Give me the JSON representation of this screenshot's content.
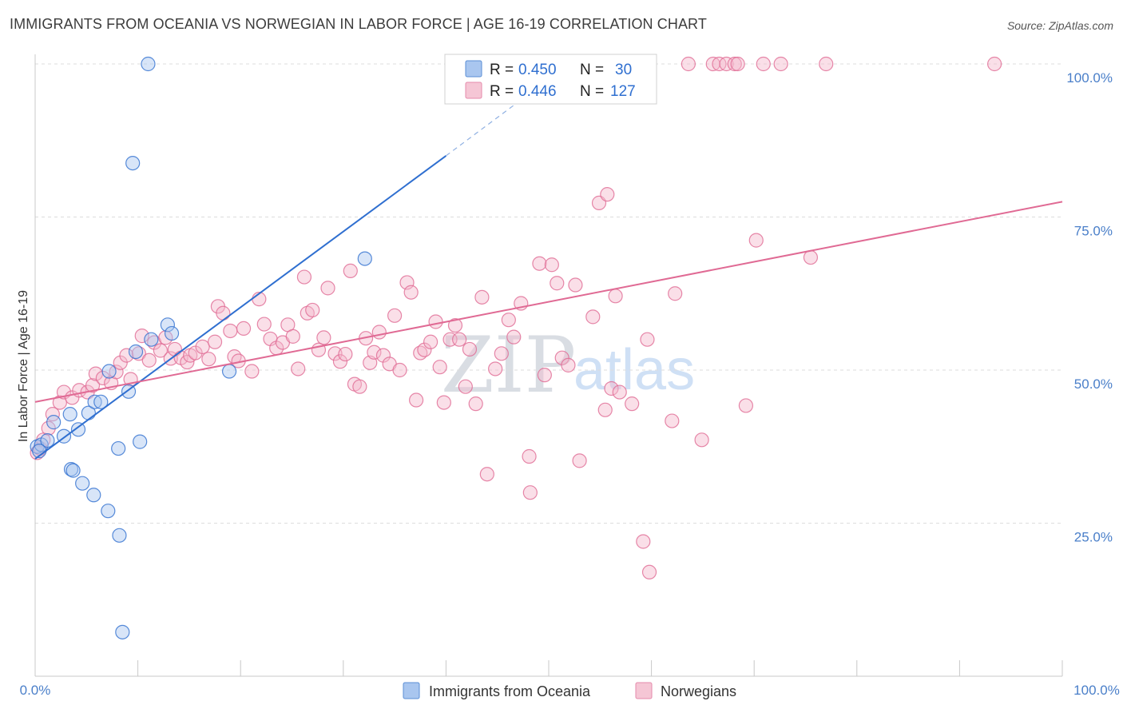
{
  "title": "IMMIGRANTS FROM OCEANIA VS NORWEGIAN IN LABOR FORCE | AGE 16-19 CORRELATION CHART",
  "source": "Source: ZipAtlas.com",
  "watermark": {
    "zip": "ZIP",
    "atlas": "atlas"
  },
  "colors": {
    "blue": "#2f6fd0",
    "blue_fill": "#a9c6ef",
    "pink": "#e06a94",
    "pink_fill": "#f5b8cc",
    "grid": "#dcdcdc",
    "axis_text": "#4a7fc9"
  },
  "legend": {
    "rows": [
      {
        "r_label": "R = ",
        "r_value": "0.450",
        "n_label": "N = ",
        "n_value": "30"
      },
      {
        "r_label": "R = ",
        "r_value": "0.446",
        "n_label": "N = ",
        "n_value": "127"
      }
    ]
  },
  "chart_data": {
    "type": "scatter",
    "title": "IMMIGRANTS FROM OCEANIA VS NORWEGIAN IN LABOR FORCE | AGE 16-19 CORRELATION CHART",
    "xlabel": "",
    "ylabel": "In Labor Force | Age 16-19",
    "xlim": [
      0,
      100
    ],
    "ylim": [
      0,
      100
    ],
    "x_tick_labels": [
      "0.0%",
      "100.0%"
    ],
    "y_ticks": [
      25,
      50,
      75,
      100
    ],
    "y_tick_labels": [
      "25.0%",
      "50.0%",
      "75.0%",
      "100.0%"
    ],
    "grid": true,
    "series": [
      {
        "name": "Immigrants from Oceania",
        "color": "#2f6fd0",
        "r": 0.45,
        "n": 30,
        "trend": {
          "x0": 0,
          "y0": 35.5,
          "x1": 40,
          "y1": 85,
          "dash_to_x": 50,
          "dash_to_y": 97.5
        },
        "points": [
          [
            0.2,
            37.5
          ],
          [
            0.6,
            37.8
          ],
          [
            1.2,
            38.5
          ],
          [
            1.8,
            41.5
          ],
          [
            2.8,
            39.2
          ],
          [
            3.4,
            42.8
          ],
          [
            4.2,
            40.3
          ],
          [
            5.2,
            43.0
          ],
          [
            5.8,
            44.8
          ],
          [
            6.4,
            44.8
          ],
          [
            7.2,
            49.8
          ],
          [
            9.1,
            46.5
          ],
          [
            9.8,
            53.0
          ],
          [
            11.3,
            55.0
          ],
          [
            12.9,
            57.4
          ],
          [
            13.3,
            56.0
          ],
          [
            3.5,
            33.8
          ],
          [
            3.7,
            33.6
          ],
          [
            4.6,
            31.5
          ],
          [
            5.7,
            29.6
          ],
          [
            7.1,
            27.0
          ],
          [
            8.2,
            23.0
          ],
          [
            8.1,
            37.2
          ],
          [
            10.2,
            38.3
          ],
          [
            18.9,
            49.8
          ],
          [
            32.1,
            68.2
          ],
          [
            11.0,
            100.0
          ],
          [
            9.5,
            83.8
          ],
          [
            8.5,
            7.2
          ],
          [
            0.4,
            36.8
          ]
        ]
      },
      {
        "name": "Norwegians",
        "color": "#e06a94",
        "r": 0.446,
        "n": 127,
        "trend": {
          "x0": 0,
          "y0": 44.8,
          "x1": 100,
          "y1": 77.5
        },
        "points": [
          [
            0.2,
            36.5
          ],
          [
            0.5,
            37.2
          ],
          [
            0.8,
            38.6
          ],
          [
            1.3,
            40.5
          ],
          [
            1.7,
            42.8
          ],
          [
            2.4,
            44.7
          ],
          [
            2.8,
            46.4
          ],
          [
            3.6,
            45.5
          ],
          [
            4.3,
            46.7
          ],
          [
            5.1,
            46.4
          ],
          [
            5.6,
            47.5
          ],
          [
            5.9,
            49.4
          ],
          [
            6.6,
            48.7
          ],
          [
            7.4,
            47.9
          ],
          [
            7.9,
            49.7
          ],
          [
            8.3,
            51.2
          ],
          [
            8.9,
            52.4
          ],
          [
            9.3,
            48.5
          ],
          [
            10.1,
            52.7
          ],
          [
            10.4,
            55.6
          ],
          [
            11.1,
            51.6
          ],
          [
            11.6,
            54.5
          ],
          [
            12.2,
            53.2
          ],
          [
            12.7,
            55.3
          ],
          [
            13.2,
            51.9
          ],
          [
            13.6,
            53.4
          ],
          [
            14.2,
            52.0
          ],
          [
            14.8,
            51.3
          ],
          [
            15.1,
            52.4
          ],
          [
            15.6,
            52.8
          ],
          [
            16.3,
            53.8
          ],
          [
            16.9,
            51.8
          ],
          [
            17.5,
            54.6
          ],
          [
            17.8,
            60.4
          ],
          [
            18.3,
            59.3
          ],
          [
            19.0,
            56.4
          ],
          [
            19.4,
            52.2
          ],
          [
            19.8,
            51.5
          ],
          [
            20.3,
            56.8
          ],
          [
            21.1,
            49.8
          ],
          [
            21.8,
            61.6
          ],
          [
            22.3,
            57.5
          ],
          [
            22.9,
            55.1
          ],
          [
            23.5,
            53.6
          ],
          [
            24.1,
            54.5
          ],
          [
            24.6,
            57.4
          ],
          [
            25.1,
            55.5
          ],
          [
            25.6,
            50.2
          ],
          [
            26.2,
            65.2
          ],
          [
            26.5,
            59.3
          ],
          [
            27.0,
            59.8
          ],
          [
            27.6,
            53.3
          ],
          [
            28.1,
            55.3
          ],
          [
            28.5,
            63.4
          ],
          [
            29.2,
            52.7
          ],
          [
            29.7,
            51.4
          ],
          [
            30.2,
            52.6
          ],
          [
            30.7,
            66.2
          ],
          [
            31.1,
            47.7
          ],
          [
            31.6,
            47.3
          ],
          [
            32.2,
            55.2
          ],
          [
            32.6,
            51.2
          ],
          [
            33.0,
            52.9
          ],
          [
            33.5,
            56.2
          ],
          [
            33.9,
            52.4
          ],
          [
            34.5,
            51.0
          ],
          [
            35.0,
            58.9
          ],
          [
            35.5,
            50.0
          ],
          [
            36.2,
            64.3
          ],
          [
            36.6,
            62.7
          ],
          [
            37.1,
            45.1
          ],
          [
            37.5,
            52.8
          ],
          [
            37.9,
            53.3
          ],
          [
            38.5,
            54.6
          ],
          [
            39.0,
            57.9
          ],
          [
            39.4,
            50.5
          ],
          [
            39.8,
            44.7
          ],
          [
            40.4,
            55.0
          ],
          [
            40.9,
            57.3
          ],
          [
            41.3,
            55.0
          ],
          [
            41.9,
            47.3
          ],
          [
            42.3,
            53.4
          ],
          [
            42.9,
            44.5
          ],
          [
            43.5,
            61.9
          ],
          [
            44.0,
            33.0
          ],
          [
            44.8,
            50.2
          ],
          [
            45.4,
            52.7
          ],
          [
            46.1,
            58.2
          ],
          [
            46.6,
            55.4
          ],
          [
            47.3,
            60.9
          ],
          [
            48.1,
            35.9
          ],
          [
            48.2,
            30.0
          ],
          [
            49.1,
            67.4
          ],
          [
            49.6,
            49.2
          ],
          [
            50.3,
            67.2
          ],
          [
            50.8,
            64.2
          ],
          [
            51.3,
            52.0
          ],
          [
            51.9,
            50.8
          ],
          [
            52.6,
            63.9
          ],
          [
            53.0,
            35.2
          ],
          [
            54.3,
            58.7
          ],
          [
            54.9,
            77.3
          ],
          [
            55.5,
            43.5
          ],
          [
            55.7,
            78.7
          ],
          [
            56.1,
            47.0
          ],
          [
            56.5,
            62.1
          ],
          [
            58.1,
            44.5
          ],
          [
            59.2,
            22.0
          ],
          [
            59.8,
            17.0
          ],
          [
            59.6,
            55.0
          ],
          [
            62.0,
            41.7
          ],
          [
            62.3,
            62.5
          ],
          [
            63.6,
            100.0
          ],
          [
            64.9,
            38.6
          ],
          [
            66.0,
            100.0
          ],
          [
            66.6,
            100.0
          ],
          [
            67.3,
            100.0
          ],
          [
            68.1,
            100.0
          ],
          [
            68.4,
            100.0
          ],
          [
            69.2,
            44.2
          ],
          [
            70.2,
            71.2
          ],
          [
            70.9,
            100.0
          ],
          [
            72.6,
            100.0
          ],
          [
            75.5,
            68.4
          ],
          [
            77.0,
            100.0
          ],
          [
            93.4,
            100.0
          ],
          [
            56.9,
            46.4
          ]
        ]
      }
    ]
  },
  "bottom_legend": [
    {
      "label": "Immigrants from Oceania"
    },
    {
      "label": "Norwegians"
    }
  ]
}
